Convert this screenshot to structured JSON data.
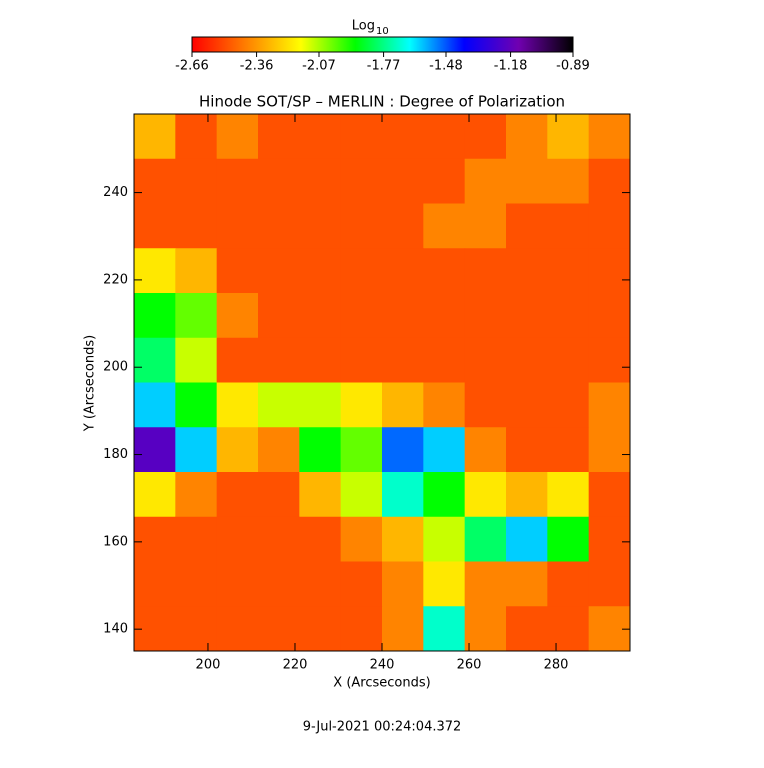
{
  "chart_data": {
    "type": "heatmap",
    "title": "Hinode SOT/SP – MERLIN : Degree of Polarization",
    "x_label": "X (Arcseconds)",
    "y_label": "Y (Arcseconds)",
    "footer": "9-Jul-2021 00:24:04.372",
    "colorbar_label": "Log",
    "colorbar_label_sub": "10",
    "colorbar_lim": [
      -2.66,
      -0.89
    ],
    "colorbar_ticks": [
      -2.66,
      -2.36,
      -2.07,
      -1.77,
      -1.48,
      -1.18,
      -0.89
    ],
    "colormap": [
      "#ff0000",
      "#ff8000",
      "#ffff00",
      "#00ff00",
      "#00ffff",
      "#0000ff",
      "#7000b0",
      "#000000"
    ],
    "xlim": [
      183,
      297
    ],
    "ylim": [
      135,
      258
    ],
    "xticks": [
      200,
      220,
      240,
      260,
      280
    ],
    "yticks": [
      140,
      160,
      180,
      200,
      220,
      240
    ],
    "z": [
      [
        -2.3,
        -2.5,
        -2.4,
        -2.5,
        -2.5,
        -2.5,
        -2.5,
        -2.5,
        -2.5,
        -2.4,
        -2.3,
        -2.4
      ],
      [
        -2.5,
        -2.5,
        -2.5,
        -2.5,
        -2.5,
        -2.5,
        -2.5,
        -2.5,
        -2.4,
        -2.4,
        -2.4,
        -2.5
      ],
      [
        -2.5,
        -2.5,
        -2.5,
        -2.5,
        -2.5,
        -2.5,
        -2.5,
        -2.4,
        -2.4,
        -2.5,
        -2.5,
        -2.5
      ],
      [
        -2.2,
        -2.3,
        -2.5,
        -2.5,
        -2.5,
        -2.5,
        -2.5,
        -2.5,
        -2.5,
        -2.5,
        -2.5,
        -2.5
      ],
      [
        -1.9,
        -2.0,
        -2.4,
        -2.5,
        -2.5,
        -2.5,
        -2.5,
        -2.5,
        -2.5,
        -2.5,
        -2.5,
        -2.5
      ],
      [
        -1.8,
        -2.1,
        -2.5,
        -2.5,
        -2.5,
        -2.5,
        -2.5,
        -2.5,
        -2.5,
        -2.5,
        -2.5,
        -2.5
      ],
      [
        -1.6,
        -1.9,
        -2.2,
        -2.1,
        -2.1,
        -2.2,
        -2.3,
        -2.4,
        -2.5,
        -2.5,
        -2.5,
        -2.4
      ],
      [
        -1.2,
        -1.6,
        -2.3,
        -2.4,
        -1.9,
        -2.0,
        -1.5,
        -1.6,
        -2.4,
        -2.5,
        -2.5,
        -2.4
      ],
      [
        -2.2,
        -2.4,
        -2.5,
        -2.5,
        -2.3,
        -2.1,
        -1.7,
        -1.9,
        -2.2,
        -2.3,
        -2.2,
        -2.5
      ],
      [
        -2.5,
        -2.5,
        -2.5,
        -2.5,
        -2.5,
        -2.4,
        -2.3,
        -2.1,
        -1.8,
        -1.6,
        -1.9,
        -2.5
      ],
      [
        -2.5,
        -2.5,
        -2.5,
        -2.5,
        -2.5,
        -2.5,
        -2.4,
        -2.2,
        -2.4,
        -2.4,
        -2.5,
        -2.5
      ],
      [
        -2.5,
        -2.5,
        -2.5,
        -2.5,
        -2.5,
        -2.5,
        -2.4,
        -1.7,
        -2.4,
        -2.5,
        -2.5,
        -2.4
      ]
    ]
  }
}
